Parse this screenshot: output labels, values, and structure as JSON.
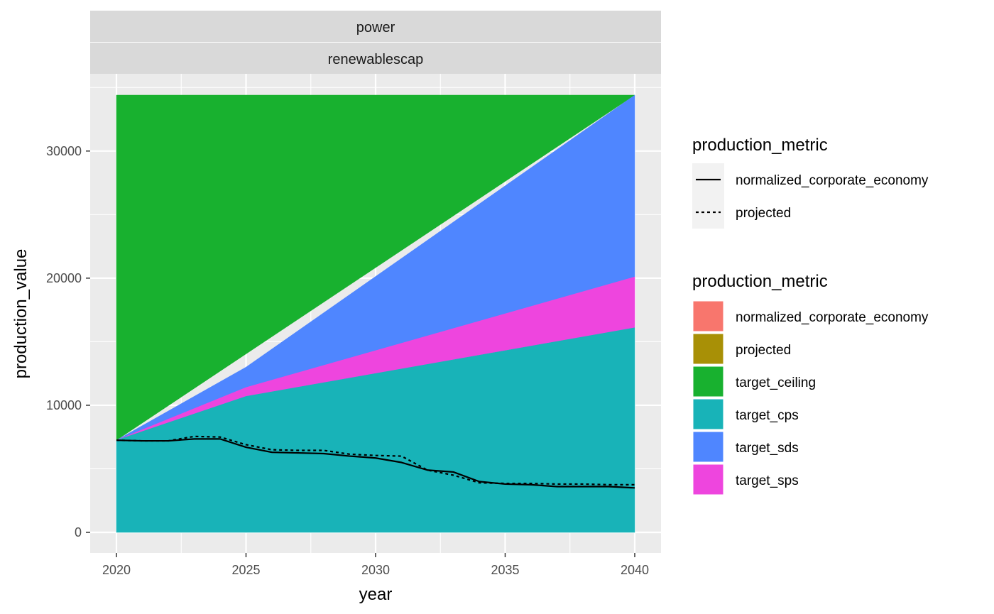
{
  "chart_data": {
    "type": "area",
    "facet_strips": [
      "power",
      "renewablescap"
    ],
    "xlabel": "year",
    "ylabel": "production_value",
    "xlim": [
      2020,
      2040
    ],
    "ylim": [
      0,
      34400
    ],
    "x_ticks": [
      2020,
      2025,
      2030,
      2035,
      2040
    ],
    "y_ticks": [
      0,
      10000,
      20000,
      30000
    ],
    "grid": true,
    "areas": [
      {
        "name": "target_ceiling",
        "color": "#18B12F",
        "x": [
          2020,
          2040
        ],
        "lower": [
          7250,
          34400
        ],
        "upper": [
          34400,
          34400
        ]
      },
      {
        "name": "target_sds",
        "color": "#4F86FF",
        "x": [
          2020,
          2025,
          2040
        ],
        "lower": [
          7250,
          11400,
          20100
        ],
        "upper": [
          7250,
          13000,
          34400
        ]
      },
      {
        "name": "target_sps",
        "color": "#EE45DE",
        "x": [
          2020,
          2025,
          2040
        ],
        "lower": [
          7250,
          10700,
          16100
        ],
        "upper": [
          7250,
          11400,
          20100
        ]
      },
      {
        "name": "target_cps",
        "color": "#18B3B8",
        "x": [
          2020,
          2025,
          2040
        ],
        "lower": [
          0,
          0,
          0
        ],
        "upper": [
          7250,
          10700,
          16100
        ]
      }
    ],
    "lines": [
      {
        "name": "normalized_corporate_economy",
        "linetype": "solid",
        "x": [
          2020,
          2021,
          2022,
          2023,
          2024,
          2025,
          2026,
          2027,
          2028,
          2029,
          2030,
          2031,
          2032,
          2033,
          2034,
          2035,
          2036,
          2037,
          2038,
          2039,
          2040
        ],
        "y": [
          7250,
          7200,
          7200,
          7350,
          7350,
          6700,
          6300,
          6250,
          6200,
          6000,
          5850,
          5500,
          4900,
          4750,
          4000,
          3800,
          3750,
          3600,
          3600,
          3600,
          3500
        ]
      },
      {
        "name": "projected",
        "linetype": "dashed",
        "x": [
          2020,
          2021,
          2022,
          2023,
          2024,
          2025,
          2026,
          2027,
          2028,
          2029,
          2030,
          2031,
          2032,
          2033,
          2034,
          2035,
          2036,
          2037,
          2038,
          2039,
          2040
        ],
        "y": [
          7250,
          7200,
          7200,
          7550,
          7500,
          6900,
          6500,
          6450,
          6450,
          6150,
          6050,
          6000,
          4900,
          4500,
          3900,
          3850,
          3850,
          3800,
          3800,
          3750,
          3750
        ]
      }
    ],
    "legends": [
      {
        "title": "production_metric",
        "kind": "linetype",
        "items": [
          {
            "label": "normalized_corporate_economy",
            "linetype": "solid"
          },
          {
            "label": "projected",
            "linetype": "dashed"
          }
        ]
      },
      {
        "title": "production_metric",
        "kind": "fill",
        "items": [
          {
            "label": "normalized_corporate_economy",
            "color": "#F8766D"
          },
          {
            "label": "projected",
            "color": "#A89006"
          },
          {
            "label": "target_ceiling",
            "color": "#18B12F"
          },
          {
            "label": "target_cps",
            "color": "#18B3B8"
          },
          {
            "label": "target_sds",
            "color": "#4F86FF"
          },
          {
            "label": "target_sps",
            "color": "#EE45DE"
          }
        ]
      }
    ],
    "legend_position": "right"
  }
}
